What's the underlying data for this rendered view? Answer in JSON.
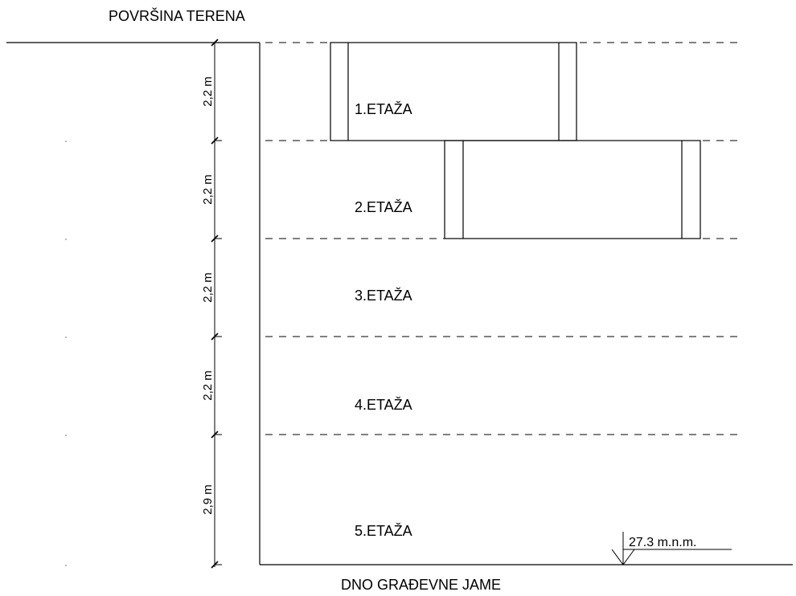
{
  "surface_label": "POVRŠINA TERENA",
  "bottom_label": "DNO GRAĐEVNE JAME",
  "elevation_label": "27.3 m.n.m.",
  "levels": [
    {
      "label": "1.ETAŽA",
      "height": "2,2 m"
    },
    {
      "label": "2.ETAŽA",
      "height": "2,2 m"
    },
    {
      "label": "3.ETAŽA",
      "height": "2,2 m"
    },
    {
      "label": "4.ETAŽA",
      "height": "2,2 m"
    },
    {
      "label": "5.ETAŽA",
      "height": "2,9 m"
    }
  ]
}
